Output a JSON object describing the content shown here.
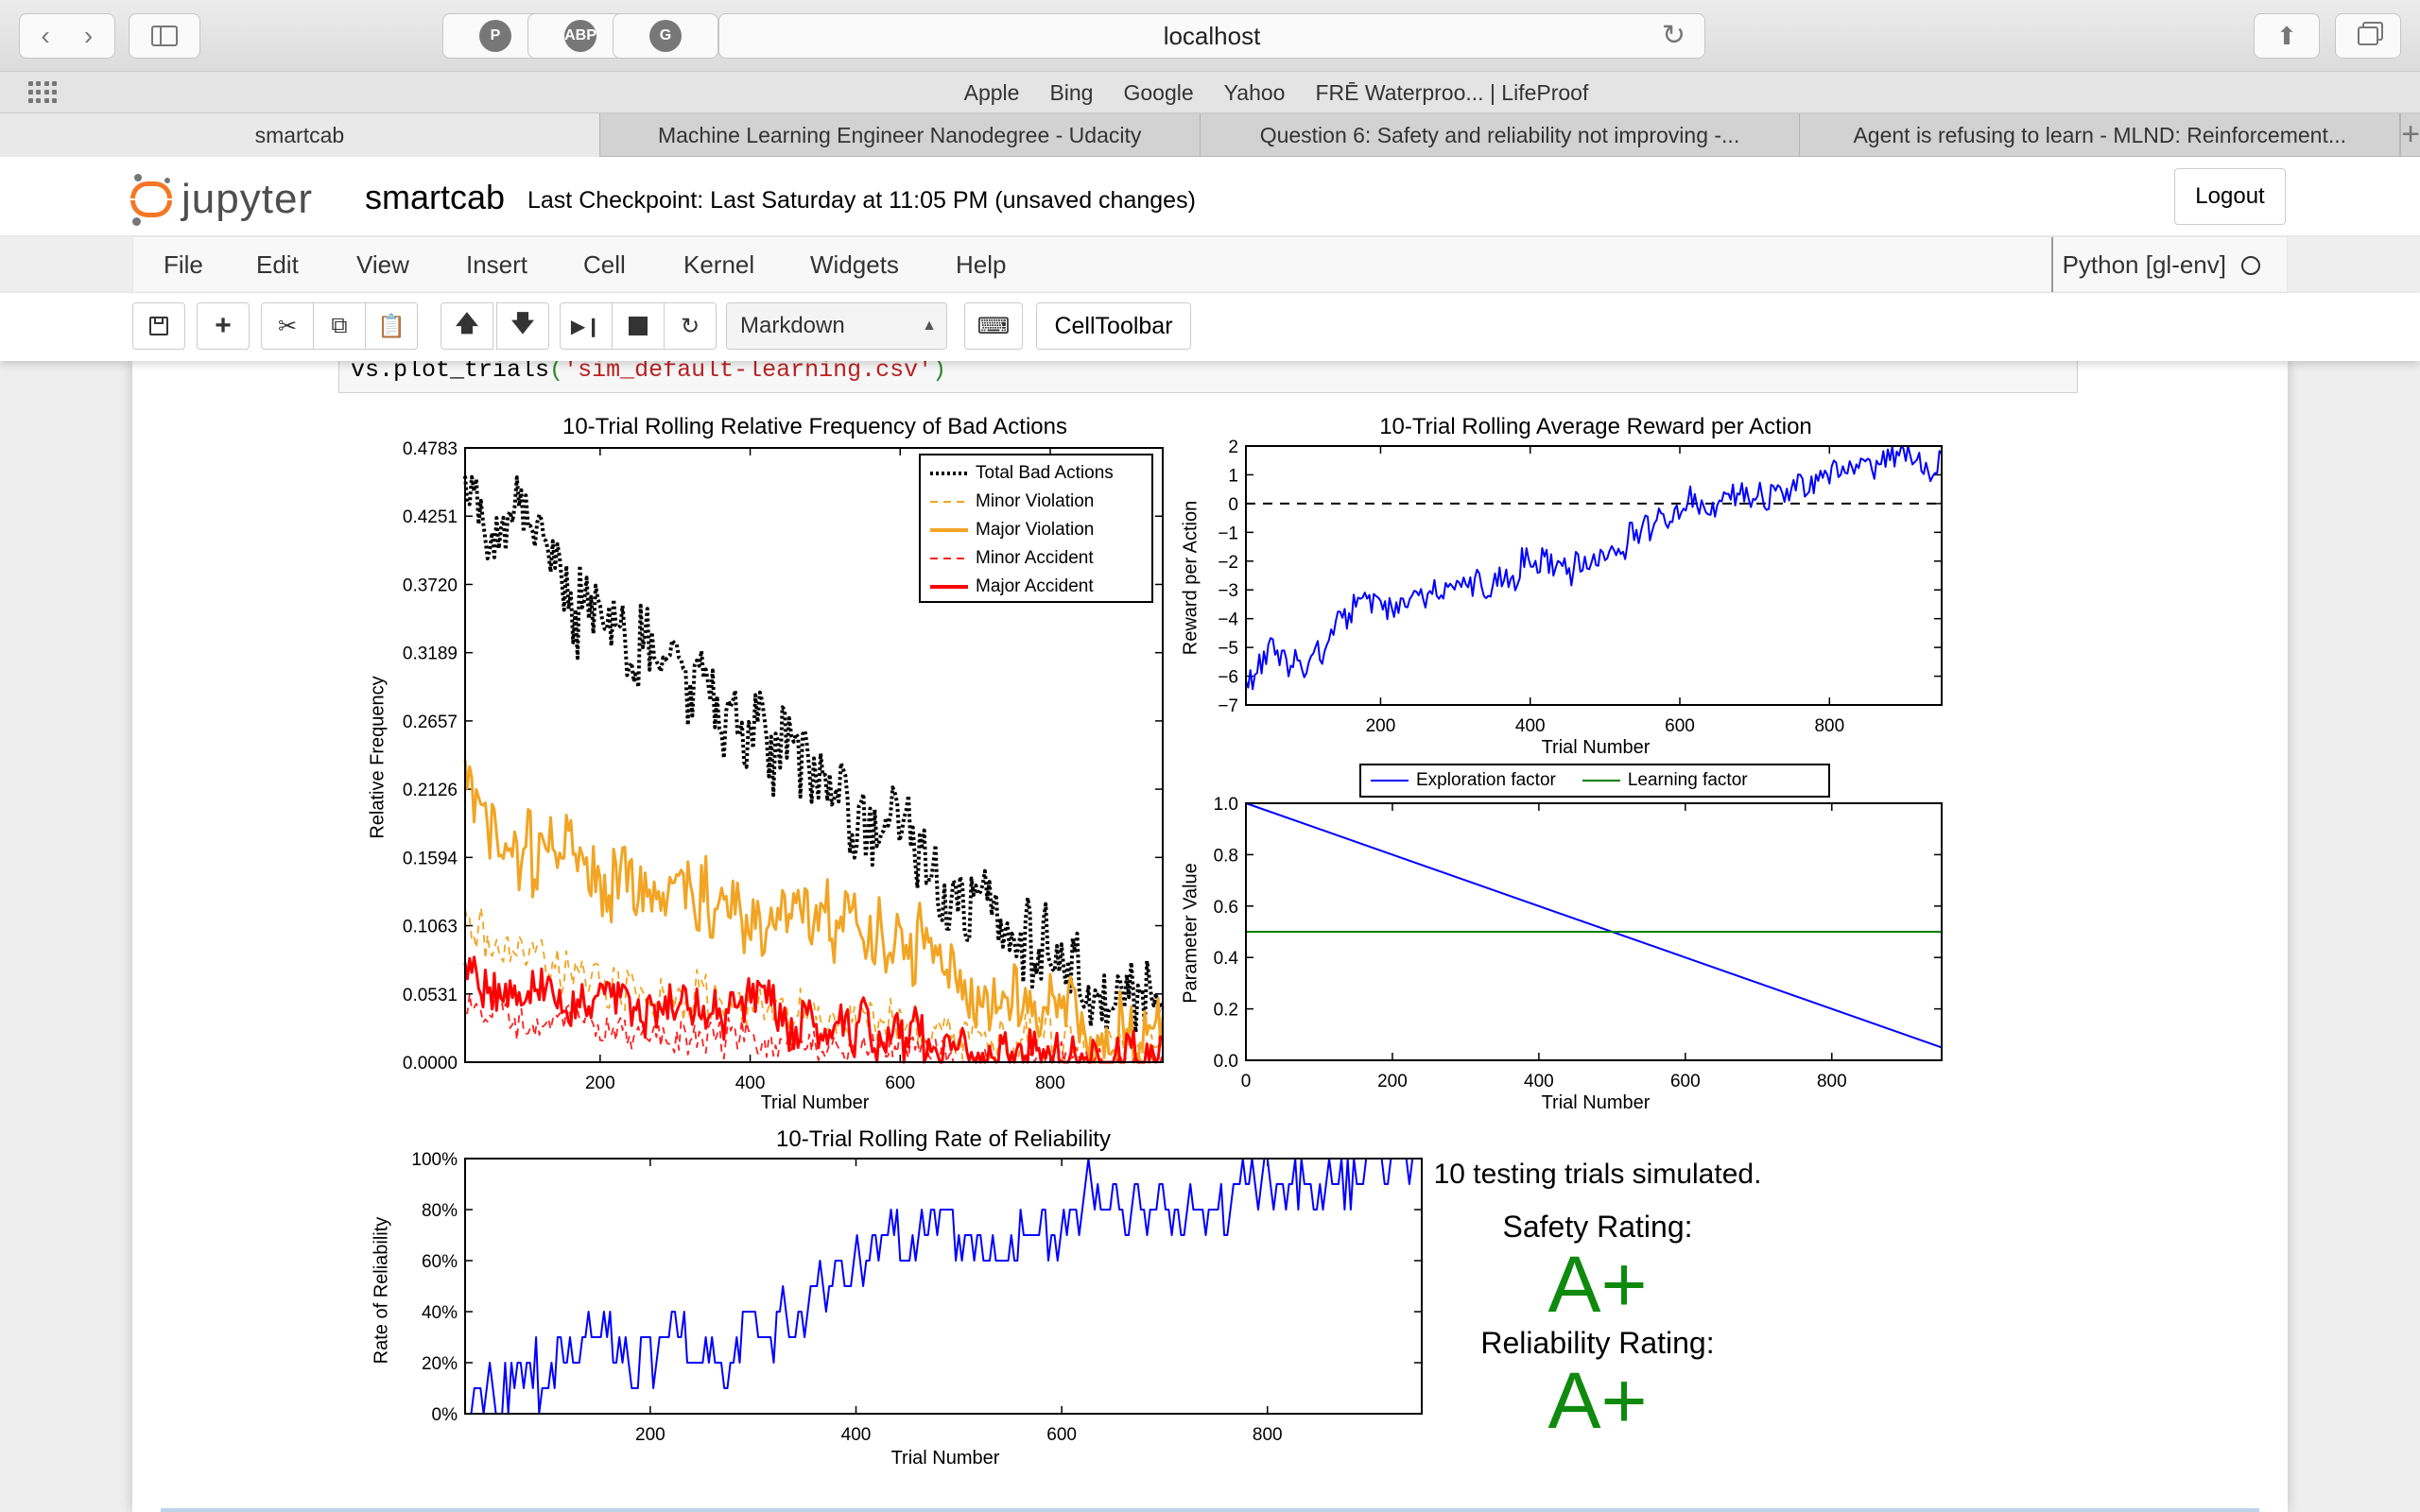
{
  "browser": {
    "url": "localhost",
    "favorites": [
      "Apple",
      "Bing",
      "Google",
      "Yahoo",
      "FRĒ Waterproo... | LifeProof"
    ],
    "tabs": [
      {
        "title": "smartcab",
        "active": true
      },
      {
        "title": "Machine Learning Engineer Nanodegree - Udacity",
        "active": false
      },
      {
        "title": "Question 6: Safety and reliability not improving -...",
        "active": false
      },
      {
        "title": "Agent is refusing to learn - MLND: Reinforcement...",
        "active": false
      }
    ],
    "extensions": [
      "P",
      "ABP",
      "G"
    ]
  },
  "jupyter": {
    "logo_text": "jupyter",
    "notebook_name": "smartcab",
    "checkpoint": "Last Checkpoint: Last Saturday at 11:05 PM (unsaved changes)",
    "logout_label": "Logout",
    "menu": [
      "File",
      "Edit",
      "View",
      "Insert",
      "Cell",
      "Kernel",
      "Widgets",
      "Help"
    ],
    "kernel": "Python [gl-env]",
    "cell_type": "Markdown",
    "celltoolbar_label": "CellToolbar"
  },
  "code": {
    "prefix": "vs.plot_trials",
    "open": "(",
    "arg": "'sim_default-learning.csv'",
    "close": ")"
  },
  "chart_data": [
    {
      "type": "line",
      "title": "10-Trial Rolling Relative Frequency of Bad Actions",
      "xlabel": "Trial Number",
      "ylabel": "Relative Frequency",
      "xlim": [
        20,
        950
      ],
      "ylim": [
        0,
        0.4783
      ],
      "xticks": [
        200,
        400,
        600,
        800
      ],
      "yticks": [
        "0.0000",
        "0.0531",
        "0.1063",
        "0.1594",
        "0.2126",
        "0.2657",
        "0.3189",
        "0.3720",
        "0.4251",
        "0.4783"
      ],
      "legend_position": "top-right",
      "x": [
        20,
        60,
        100,
        140,
        180,
        220,
        260,
        300,
        340,
        380,
        420,
        460,
        500,
        540,
        580,
        620,
        660,
        700,
        740,
        780,
        820,
        860,
        900,
        950
      ],
      "series": [
        {
          "name": "Total Bad Actions",
          "color": "#000000",
          "style": "dotted",
          "values": [
            0.46,
            0.4,
            0.42,
            0.38,
            0.35,
            0.33,
            0.31,
            0.3,
            0.28,
            0.27,
            0.25,
            0.24,
            0.22,
            0.2,
            0.19,
            0.16,
            0.13,
            0.11,
            0.1,
            0.09,
            0.08,
            0.06,
            0.05,
            0.04
          ]
        },
        {
          "name": "Minor Violation",
          "color": "#f2a423",
          "style": "dashed",
          "values": [
            0.12,
            0.09,
            0.08,
            0.07,
            0.06,
            0.06,
            0.05,
            0.05,
            0.05,
            0.04,
            0.04,
            0.04,
            0.03,
            0.03,
            0.03,
            0.03,
            0.02,
            0.02,
            0.02,
            0.02,
            0.01,
            0.01,
            0.01,
            0.01
          ]
        },
        {
          "name": "Major Violation",
          "color": "#f2a423",
          "style": "solid",
          "values": [
            0.22,
            0.17,
            0.16,
            0.17,
            0.15,
            0.14,
            0.14,
            0.13,
            0.13,
            0.12,
            0.12,
            0.12,
            0.11,
            0.11,
            0.1,
            0.09,
            0.08,
            0.06,
            0.05,
            0.04,
            0.03,
            0.02,
            0.02,
            0.02
          ]
        },
        {
          "name": "Minor Accident",
          "color": "#ff2020",
          "style": "dashed",
          "values": [
            0.05,
            0.04,
            0.03,
            0.03,
            0.03,
            0.02,
            0.02,
            0.02,
            0.02,
            0.02,
            0.01,
            0.01,
            0.01,
            0.01,
            0.01,
            0.01,
            0.01,
            0.0,
            0.0,
            0.0,
            0.0,
            0.0,
            0.0,
            0.0
          ]
        },
        {
          "name": "Major Accident",
          "color": "#ff0000",
          "style": "solid",
          "values": [
            0.07,
            0.06,
            0.05,
            0.05,
            0.05,
            0.05,
            0.04,
            0.04,
            0.04,
            0.04,
            0.04,
            0.03,
            0.03,
            0.03,
            0.02,
            0.02,
            0.01,
            0.01,
            0.01,
            0.01,
            0.0,
            0.0,
            0.0,
            0.0
          ]
        }
      ]
    },
    {
      "type": "line",
      "title": "10-Trial Rolling Average Reward per Action",
      "xlabel": "Trial Number",
      "ylabel": "Reward per Action",
      "xlim": [
        20,
        950
      ],
      "ylim": [
        -7,
        2
      ],
      "xticks": [
        200,
        400,
        600,
        800
      ],
      "yticks": [
        "−7",
        "−6",
        "−5",
        "−4",
        "−3",
        "−2",
        "−1",
        "0",
        "1",
        "2"
      ],
      "reference_line": 0,
      "x": [
        20,
        60,
        100,
        140,
        180,
        220,
        260,
        300,
        340,
        380,
        420,
        460,
        500,
        540,
        580,
        620,
        640,
        660,
        680,
        720,
        760,
        800,
        840,
        880,
        920,
        950
      ],
      "series": [
        {
          "name": "",
          "color": "#0000ff",
          "values": [
            -6.2,
            -5.0,
            -5.6,
            -4.5,
            -3.5,
            -3.6,
            -3.3,
            -3.0,
            -2.7,
            -2.4,
            -2.0,
            -2.3,
            -1.6,
            -1.3,
            -0.5,
            0.2,
            -0.5,
            0.3,
            0.1,
            0.3,
            0.6,
            0.8,
            1.2,
            1.3,
            1.5,
            1.2
          ]
        }
      ]
    },
    {
      "type": "line",
      "title": "",
      "xlabel": "Trial Number",
      "ylabel": "Parameter Value",
      "xlim": [
        0,
        950
      ],
      "ylim": [
        0,
        1.0
      ],
      "xticks": [
        0,
        200,
        400,
        600,
        800
      ],
      "yticks": [
        "0.0",
        "0.2",
        "0.4",
        "0.6",
        "0.8",
        "1.0"
      ],
      "legend_position": "top-center",
      "x": [
        0,
        950
      ],
      "series": [
        {
          "name": "Exploration factor",
          "color": "#0000ff",
          "values": [
            1.0,
            0.05
          ]
        },
        {
          "name": "Learning factor",
          "color": "#008000",
          "values": [
            0.5,
            0.5
          ]
        }
      ]
    },
    {
      "type": "line",
      "title": "10-Trial Rolling Rate of Reliability",
      "xlabel": "Trial Number",
      "ylabel": "Rate of Reliability",
      "xlim": [
        20,
        950
      ],
      "ylim": [
        0,
        100
      ],
      "xticks": [
        200,
        400,
        600,
        800
      ],
      "yticks": [
        "0%",
        "20%",
        "40%",
        "60%",
        "80%",
        "100%"
      ],
      "x": [
        20,
        60,
        100,
        140,
        180,
        220,
        260,
        300,
        340,
        380,
        420,
        460,
        500,
        540,
        580,
        620,
        660,
        700,
        740,
        780,
        820,
        860,
        900,
        950
      ],
      "series": [
        {
          "name": "",
          "color": "#0000ff",
          "values": [
            0,
            10,
            20,
            30,
            20,
            30,
            20,
            30,
            40,
            50,
            60,
            70,
            70,
            60,
            70,
            80,
            80,
            80,
            80,
            90,
            90,
            90,
            100,
            100
          ]
        }
      ]
    }
  ],
  "ratings": {
    "trials_text": "10 testing trials simulated.",
    "safety_label": "Safety Rating:",
    "safety_grade": "A+",
    "reliability_label": "Reliability Rating:",
    "reliability_grade": "A+"
  }
}
